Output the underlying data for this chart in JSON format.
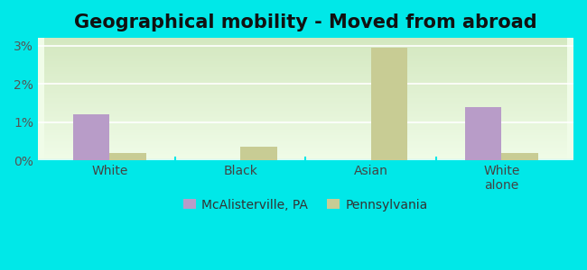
{
  "title": "Geographical mobility - Moved from abroad",
  "categories": [
    "White",
    "Black",
    "Asian",
    "White\nalone"
  ],
  "mcalisterville_values": [
    1.2,
    0.0,
    0.0,
    1.4
  ],
  "pennsylvania_values": [
    0.2,
    0.35,
    2.95,
    0.18
  ],
  "mcalisterville_color": "#b89cc8",
  "pennsylvania_color": "#c8cc94",
  "background_color": "#00e8e8",
  "plot_bg_top": "#d4e8c0",
  "plot_bg_bottom": "#f0fce8",
  "ylim": [
    0,
    3.2
  ],
  "yticks": [
    0,
    1,
    2,
    3
  ],
  "ytick_labels": [
    "0%",
    "1%",
    "2%",
    "3%"
  ],
  "bar_width": 0.28,
  "title_fontsize": 15,
  "legend_labels": [
    "McAlisterville, PA",
    "Pennsylvania"
  ]
}
